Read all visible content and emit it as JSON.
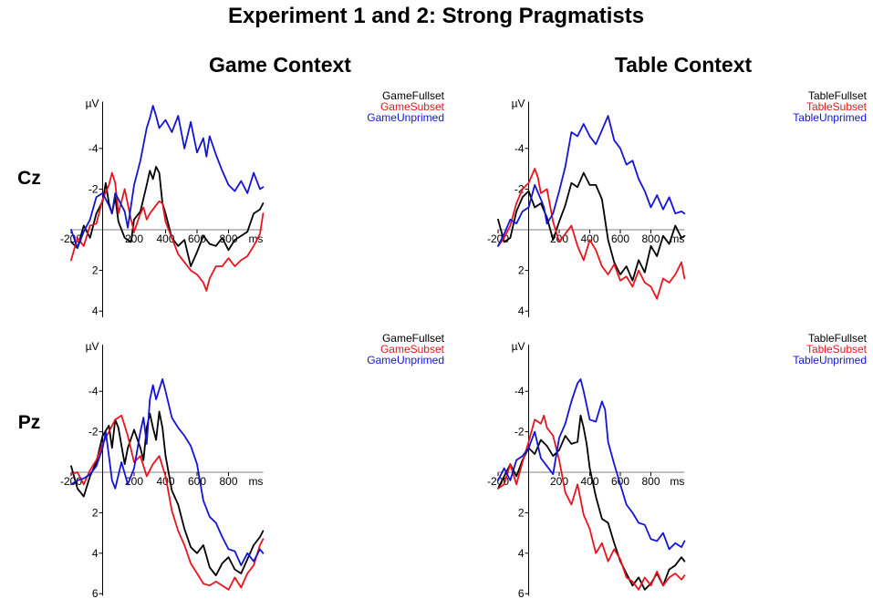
{
  "title": "Experiment 1 and 2: Strong Pragmatists",
  "columns": [
    "Game Context",
    "Table Context"
  ],
  "rows": [
    "Cz",
    "Pz"
  ],
  "colors": {
    "black": "#000000",
    "red": "#e8141e",
    "blue": "#1414d4"
  },
  "chart_data": [
    {
      "type": "line",
      "column": "Game Context",
      "electrode": "Cz",
      "unit_label": "µV",
      "x_unit_label": "ms",
      "xlim": [
        -200,
        1020
      ],
      "ylim": [
        -6.3,
        4.3
      ],
      "y_inverted": true,
      "x_ticks": [
        "-200",
        "200",
        "400",
        "600",
        "800"
      ],
      "x_tick_values": [
        -200,
        200,
        400,
        600,
        800
      ],
      "y_ticks": [
        "-4",
        "-2",
        "2",
        "4"
      ],
      "y_tick_values": [
        -4,
        -2,
        2,
        4
      ],
      "series": [
        {
          "name": "GameFullset",
          "color": "black",
          "x": [
            -200,
            -160,
            -120,
            -80,
            -40,
            0,
            20,
            40,
            60,
            80,
            100,
            140,
            180,
            200,
            240,
            280,
            300,
            320,
            340,
            360,
            380,
            400,
            440,
            480,
            520,
            560,
            600,
            640,
            680,
            720,
            760,
            800,
            840,
            880,
            920,
            960,
            1000,
            1020
          ],
          "values": [
            0.6,
            0.9,
            -0.2,
            0.4,
            -0.8,
            -1.4,
            -2.3,
            -1.3,
            -0.8,
            -1.6,
            -0.4,
            0.4,
            0.6,
            -0.5,
            -0.9,
            -2.2,
            -2.9,
            -2.5,
            -3.1,
            -2.8,
            -1.3,
            -0.8,
            0.4,
            0.8,
            0.5,
            1.8,
            1.1,
            0.3,
            0.7,
            0.8,
            0.4,
            1.0,
            0.5,
            0.3,
            0.1,
            -0.8,
            -1.0,
            -1.3
          ]
        },
        {
          "name": "GameSubset",
          "color": "red",
          "x": [
            -200,
            -160,
            -120,
            -80,
            -40,
            0,
            40,
            60,
            80,
            100,
            140,
            180,
            200,
            240,
            260,
            280,
            300,
            340,
            360,
            380,
            400,
            440,
            480,
            520,
            560,
            600,
            640,
            660,
            680,
            720,
            760,
            800,
            840,
            880,
            920,
            960,
            1000,
            1020
          ],
          "values": [
            1.5,
            0.4,
            0.8,
            -0.2,
            -0.3,
            -1.5,
            -2.2,
            -2.8,
            -2.3,
            -0.8,
            -2.0,
            -0.5,
            0.1,
            -0.8,
            -1.1,
            -0.5,
            -0.8,
            -1.2,
            -1.4,
            -1.3,
            -0.4,
            0.4,
            1.2,
            1.6,
            2.0,
            2.2,
            2.6,
            3.0,
            2.4,
            1.8,
            1.8,
            1.4,
            1.8,
            1.5,
            1.3,
            0.8,
            0.2,
            -0.8
          ]
        },
        {
          "name": "GameUnprimed",
          "color": "blue",
          "x": [
            -200,
            -160,
            -120,
            -80,
            -40,
            0,
            40,
            60,
            80,
            100,
            140,
            160,
            200,
            240,
            280,
            300,
            320,
            340,
            360,
            400,
            440,
            480,
            520,
            560,
            600,
            640,
            660,
            680,
            720,
            760,
            800,
            840,
            880,
            920,
            960,
            1000,
            1020
          ],
          "values": [
            0.0,
            0.9,
            0.1,
            -0.5,
            -1.6,
            -1.8,
            -1.2,
            -0.8,
            -1.8,
            -1.5,
            -0.9,
            -0.1,
            -2.2,
            -3.4,
            -5.0,
            -5.5,
            -6.1,
            -5.6,
            -5.0,
            -5.4,
            -4.8,
            -5.6,
            -4.0,
            -5.3,
            -3.8,
            -4.5,
            -3.6,
            -4.6,
            -3.7,
            -2.9,
            -2.2,
            -1.9,
            -2.4,
            -1.8,
            -2.8,
            -2.0,
            -2.1
          ]
        }
      ]
    },
    {
      "type": "line",
      "column": "Table Context",
      "electrode": "Cz",
      "unit_label": "µV",
      "x_unit_label": "ms",
      "xlim": [
        -200,
        1020
      ],
      "ylim": [
        -6.3,
        4.3
      ],
      "y_inverted": true,
      "x_ticks": [
        "-200",
        "200",
        "400",
        "600",
        "800"
      ],
      "x_tick_values": [
        -200,
        200,
        400,
        600,
        800
      ],
      "y_ticks": [
        "-4",
        "-2",
        "2",
        "4"
      ],
      "y_tick_values": [
        -4,
        -2,
        2,
        4
      ],
      "series": [
        {
          "name": "TableFullset",
          "color": "black",
          "x": [
            -200,
            -160,
            -120,
            -80,
            -40,
            0,
            40,
            80,
            120,
            160,
            200,
            240,
            280,
            320,
            360,
            400,
            440,
            480,
            520,
            560,
            600,
            640,
            680,
            720,
            760,
            800,
            840,
            880,
            920,
            960,
            1000,
            1020
          ],
          "values": [
            -0.5,
            0.6,
            0.4,
            -0.9,
            -1.6,
            -1.9,
            -1.1,
            -1.3,
            -0.6,
            0.5,
            -0.4,
            -1.2,
            -2.3,
            -2.1,
            -2.8,
            -2.2,
            -2.2,
            -1.5,
            0.5,
            1.6,
            2.2,
            1.8,
            2.5,
            1.5,
            2.1,
            0.8,
            1.3,
            0.3,
            0.7,
            -0.2,
            0.4,
            0.3
          ]
        },
        {
          "name": "TableSubset",
          "color": "red",
          "x": [
            -200,
            -160,
            -120,
            -80,
            -40,
            0,
            40,
            60,
            80,
            120,
            160,
            200,
            240,
            280,
            320,
            360,
            400,
            440,
            480,
            520,
            560,
            600,
            640,
            680,
            720,
            760,
            800,
            840,
            880,
            920,
            960,
            1000,
            1020
          ],
          "values": [
            0.8,
            0.4,
            -0.2,
            -1.3,
            -2.0,
            -2.3,
            -3.0,
            -2.6,
            -1.8,
            -2.0,
            -0.4,
            0.6,
            0.2,
            -0.2,
            0.8,
            1.5,
            0.5,
            1.0,
            1.8,
            2.2,
            1.7,
            2.5,
            2.3,
            2.8,
            2.0,
            2.6,
            2.8,
            3.4,
            2.4,
            2.6,
            2.2,
            1.6,
            2.4
          ]
        },
        {
          "name": "TableUnprimed",
          "color": "blue",
          "x": [
            -200,
            -160,
            -120,
            -80,
            -40,
            0,
            40,
            80,
            100,
            120,
            160,
            200,
            240,
            280,
            320,
            360,
            400,
            440,
            480,
            520,
            560,
            600,
            640,
            680,
            720,
            760,
            800,
            840,
            880,
            920,
            960,
            1000,
            1020
          ],
          "values": [
            0.8,
            0.2,
            -0.5,
            -0.3,
            -0.9,
            -1.1,
            -2.2,
            -1.5,
            -1.1,
            -0.3,
            -0.8,
            -1.9,
            -3.1,
            -4.8,
            -4.6,
            -5.2,
            -4.6,
            -4.2,
            -4.9,
            -5.6,
            -4.4,
            -4.0,
            -3.2,
            -3.4,
            -2.5,
            -1.9,
            -1.1,
            -1.7,
            -1.0,
            -1.6,
            -0.8,
            -0.9,
            -0.8
          ]
        }
      ]
    },
    {
      "type": "line",
      "column": "Game Context",
      "electrode": "Pz",
      "unit_label": "µV",
      "x_unit_label": "ms",
      "xlim": [
        -200,
        1020
      ],
      "ylim": [
        -6.3,
        6.1
      ],
      "y_inverted": true,
      "x_ticks": [
        "-200",
        "200",
        "400",
        "600",
        "800"
      ],
      "x_tick_values": [
        -200,
        200,
        400,
        600,
        800
      ],
      "y_ticks": [
        "-4",
        "-2",
        "2",
        "4",
        "6"
      ],
      "y_tick_values": [
        -4,
        -2,
        2,
        4,
        6
      ],
      "series": [
        {
          "name": "GameFullset",
          "color": "black",
          "x": [
            -200,
            -160,
            -120,
            -80,
            -40,
            0,
            40,
            60,
            80,
            100,
            140,
            160,
            200,
            240,
            260,
            280,
            300,
            320,
            340,
            360,
            380,
            400,
            440,
            480,
            520,
            560,
            600,
            640,
            680,
            720,
            760,
            800,
            840,
            880,
            920,
            960,
            1000,
            1020
          ],
          "values": [
            -0.3,
            0.8,
            1.2,
            0.2,
            -0.5,
            -1.8,
            -2.3,
            -1.2,
            -2.6,
            -2.2,
            -0.4,
            -1.2,
            -2.1,
            -1.2,
            -0.6,
            -2.2,
            -2.9,
            -2.2,
            -1.6,
            -3.0,
            -2.2,
            -0.8,
            0.9,
            1.6,
            2.8,
            3.7,
            4.0,
            3.6,
            4.7,
            5.1,
            4.5,
            4.2,
            4.8,
            5.0,
            4.3,
            3.6,
            3.2,
            2.9
          ]
        },
        {
          "name": "GameSubset",
          "color": "red",
          "x": [
            -200,
            -160,
            -120,
            -80,
            -40,
            0,
            40,
            80,
            120,
            160,
            200,
            240,
            280,
            320,
            360,
            400,
            440,
            480,
            520,
            560,
            600,
            640,
            680,
            720,
            760,
            800,
            840,
            880,
            920,
            960,
            1000,
            1020
          ],
          "values": [
            0.1,
            0.0,
            0.6,
            -0.1,
            -0.6,
            -1.4,
            -2.0,
            -2.6,
            -2.8,
            -1.8,
            -0.5,
            -0.8,
            0.2,
            -0.4,
            -0.8,
            0.2,
            1.9,
            2.9,
            3.6,
            4.5,
            5.0,
            5.5,
            5.6,
            5.4,
            5.6,
            5.8,
            5.2,
            5.7,
            5.0,
            4.6,
            3.6,
            3.3
          ]
        },
        {
          "name": "GameUnprimed",
          "color": "blue",
          "x": [
            -200,
            -160,
            -120,
            -80,
            -40,
            0,
            20,
            40,
            60,
            80,
            120,
            160,
            200,
            240,
            260,
            280,
            300,
            320,
            340,
            360,
            380,
            400,
            440,
            480,
            520,
            560,
            600,
            640,
            680,
            720,
            760,
            800,
            840,
            880,
            920,
            960,
            1000,
            1020
          ],
          "values": [
            0.6,
            0.4,
            0.3,
            0.1,
            -0.3,
            -1.2,
            -2.0,
            -0.8,
            0.4,
            0.8,
            -0.5,
            0.6,
            -0.2,
            -2.0,
            -2.7,
            -1.4,
            -3.6,
            -4.3,
            -3.6,
            -4.1,
            -4.6,
            -4.0,
            -2.7,
            -2.2,
            -1.8,
            -1.3,
            -0.4,
            1.4,
            2.2,
            2.5,
            3.2,
            3.8,
            3.9,
            4.6,
            4.0,
            4.4,
            3.8,
            4.0
          ]
        }
      ]
    },
    {
      "type": "line",
      "column": "Table Context",
      "electrode": "Pz",
      "unit_label": "µV",
      "x_unit_label": "ms",
      "xlim": [
        -200,
        1020
      ],
      "ylim": [
        -6.3,
        6.1
      ],
      "y_inverted": true,
      "x_ticks": [
        "-200",
        "200",
        "400",
        "600",
        "800"
      ],
      "x_tick_values": [
        -200,
        200,
        400,
        600,
        800
      ],
      "y_ticks": [
        "-4",
        "-2",
        "2",
        "4",
        "6"
      ],
      "y_tick_values": [
        -4,
        -2,
        2,
        4,
        6
      ],
      "series": [
        {
          "name": "TableFullset",
          "color": "black",
          "x": [
            -200,
            -160,
            -120,
            -80,
            -40,
            0,
            40,
            80,
            120,
            160,
            200,
            240,
            280,
            320,
            340,
            360,
            380,
            400,
            440,
            480,
            520,
            560,
            600,
            640,
            680,
            720,
            760,
            800,
            840,
            880,
            920,
            960,
            1000,
            1020
          ],
          "values": [
            0.8,
            0.2,
            -0.4,
            0.2,
            -0.6,
            -1.2,
            -0.9,
            -1.6,
            -1.3,
            -0.8,
            -1.1,
            -1.8,
            -1.4,
            -1.5,
            -2.8,
            -2.2,
            -1.4,
            -0.2,
            1.2,
            2.3,
            2.5,
            3.5,
            4.4,
            5.0,
            5.6,
            5.2,
            5.8,
            5.5,
            5.0,
            5.6,
            4.8,
            4.6,
            4.2,
            4.4
          ]
        },
        {
          "name": "TableSubset",
          "color": "red",
          "x": [
            -200,
            -160,
            -120,
            -80,
            -40,
            0,
            40,
            80,
            100,
            120,
            160,
            200,
            240,
            280,
            320,
            360,
            400,
            440,
            480,
            520,
            560,
            600,
            640,
            680,
            720,
            760,
            800,
            840,
            880,
            920,
            960,
            1000,
            1020
          ],
          "values": [
            0.8,
            0.6,
            -0.4,
            0.6,
            -0.5,
            -1.5,
            -2.6,
            -2.4,
            -2.8,
            -2.2,
            -1.8,
            -0.6,
            1.0,
            1.6,
            0.6,
            2.1,
            2.8,
            4.0,
            3.5,
            4.4,
            3.8,
            4.3,
            5.2,
            5.4,
            5.8,
            5.2,
            5.6,
            4.9,
            5.6,
            5.2,
            5.0,
            5.3,
            5.1
          ]
        },
        {
          "name": "TableUnprimed",
          "color": "blue",
          "x": [
            -200,
            -160,
            -120,
            -80,
            -40,
            0,
            40,
            80,
            120,
            160,
            200,
            240,
            280,
            320,
            340,
            360,
            400,
            440,
            480,
            500,
            520,
            560,
            600,
            640,
            680,
            720,
            760,
            800,
            840,
            880,
            920,
            960,
            1000,
            1020
          ],
          "values": [
            0.4,
            -0.2,
            0.4,
            -0.6,
            -0.8,
            -1.2,
            -2.0,
            -0.7,
            -0.3,
            0.1,
            -1.7,
            -2.4,
            -3.5,
            -4.4,
            -4.6,
            -4.0,
            -2.6,
            -2.5,
            -3.5,
            -3.1,
            -1.5,
            -0.4,
            0.6,
            1.6,
            2.0,
            2.5,
            2.6,
            3.3,
            3.4,
            3.0,
            3.8,
            3.5,
            3.7,
            3.4
          ]
        }
      ]
    }
  ]
}
